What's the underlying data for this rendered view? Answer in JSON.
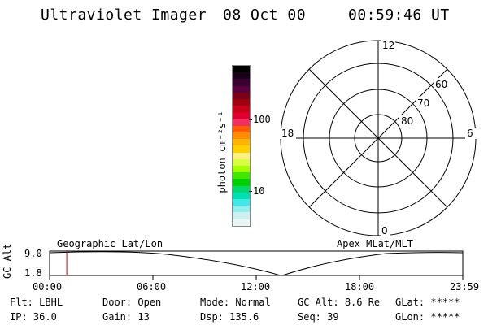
{
  "header": {
    "instrument": "Ultraviolet Imager",
    "date": "08 Oct 00",
    "time": "00:59:46 UT"
  },
  "colorbar": {
    "unit_label": "photon cm⁻²s⁻¹",
    "tick_100": "100",
    "tick_10": "10",
    "colors": [
      "#000000",
      "#1a0018",
      "#3a0030",
      "#5a0040",
      "#7a0018",
      "#a00010",
      "#c80018",
      "#e00030",
      "#f03060",
      "#ff5a00",
      "#ff8c00",
      "#ffb400",
      "#ffd000",
      "#ffef80",
      "#d8ff40",
      "#a0ff00",
      "#40e800",
      "#00d000",
      "#00d870",
      "#00e0b0",
      "#40e8e8",
      "#90f0f0",
      "#cfefef",
      "#e8f6f6"
    ]
  },
  "polar": {
    "mlt_12": "12",
    "mlt_18": "18",
    "mlt_6": "6",
    "mlt_0": "0",
    "lat_60": "60",
    "lat_70": "70",
    "lat_80": "80"
  },
  "timeline": {
    "left_label": "Geographic Lat/Lon",
    "right_label": "Apex MLat/MLT",
    "ylabel": "GC Alt",
    "y_top": "9.0",
    "y_bottom": "1.8",
    "ticks": [
      "00:00",
      "06:00",
      "12:00",
      "18:00",
      "23:59"
    ],
    "current_time_fraction": 0.0415
  },
  "info": {
    "flt_label": "Flt:",
    "flt_value": "LBHL",
    "ip_label": "IP:",
    "ip_value": "36.0",
    "door_label": "Door:",
    "door_value": "Open",
    "gain_label": "Gain:",
    "gain_value": "13",
    "mode_label": "Mode:",
    "mode_value": "Normal",
    "dsp_label": "Dsp:",
    "dsp_value": "135.6",
    "gcalt_label": "GC Alt:",
    "gcalt_value": "8.6 Re",
    "seq_label": "Seq:",
    "seq_value": "39",
    "glat_label": "GLat:",
    "glat_value": "*****",
    "glon_label": "GLon:",
    "glon_value": "*****"
  },
  "colors": {
    "grid": "#000000",
    "marker": "#cc0000",
    "background": "#ffffff"
  }
}
